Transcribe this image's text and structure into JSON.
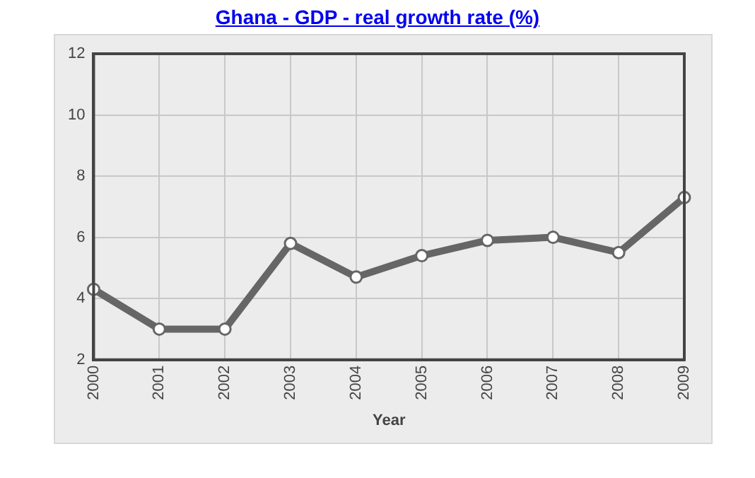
{
  "chart_data": {
    "type": "line",
    "title": "Ghana - GDP - real growth rate (%)",
    "xlabel": "Year",
    "categories": [
      "2000",
      "2001",
      "2002",
      "2003",
      "2004",
      "2005",
      "2006",
      "2007",
      "2008",
      "2009"
    ],
    "values": [
      4.3,
      3.0,
      3.0,
      5.8,
      4.7,
      5.4,
      5.9,
      6.0,
      5.5,
      7.3
    ],
    "color": "#666666",
    "ylim": [
      2,
      12
    ],
    "yticks": [
      2,
      4,
      6,
      8,
      10,
      12
    ],
    "grid": true,
    "marker": "circle",
    "legend": false
  }
}
